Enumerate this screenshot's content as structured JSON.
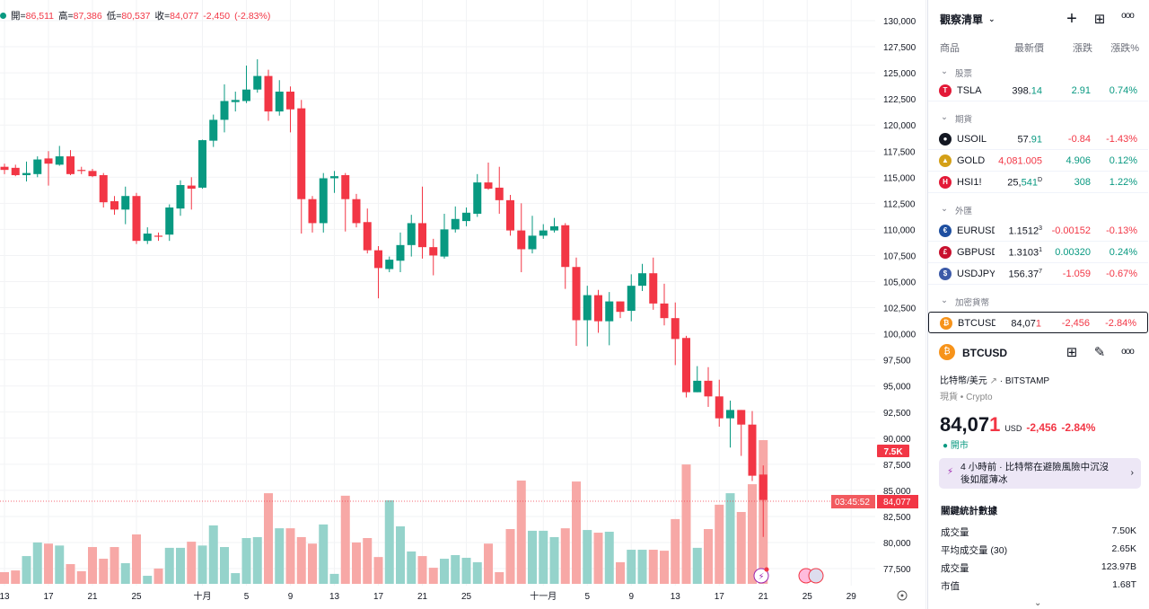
{
  "legend": {
    "open_label": "開=",
    "open": "86,511",
    "high_label": "高=",
    "high": "87,386",
    "low_label": "低=",
    "low": "80,537",
    "close_label": "收=",
    "close": "84,077",
    "change": "-2,450",
    "change_pct": "(-2.83%)"
  },
  "chart_data": {
    "type": "candlestick",
    "symbol": "BTCUSD",
    "ylim": [
      77500,
      130000
    ],
    "y_ticks": [
      "130,000",
      "127,500",
      "125,000",
      "122,500",
      "120,000",
      "117,500",
      "115,000",
      "112,500",
      "110,000",
      "107,500",
      "105,000",
      "102,500",
      "100,000",
      "97,500",
      "95,000",
      "92,500",
      "90,000",
      "87,500",
      "85,000",
      "82,500",
      "80,000",
      "77,500"
    ],
    "y_tick_values": [
      130000,
      127500,
      125000,
      122500,
      120000,
      117500,
      115000,
      112500,
      110000,
      107500,
      105000,
      102500,
      100000,
      97500,
      95000,
      92500,
      90000,
      87500,
      85000,
      82500,
      80000,
      77500
    ],
    "x_labels": [
      {
        "label": "13",
        "index": 0
      },
      {
        "label": "17",
        "index": 4
      },
      {
        "label": "21",
        "index": 8
      },
      {
        "label": "25",
        "index": 12
      },
      {
        "label": "十月",
        "index": 18
      },
      {
        "label": "5",
        "index": 22
      },
      {
        "label": "9",
        "index": 26
      },
      {
        "label": "13",
        "index": 30
      },
      {
        "label": "17",
        "index": 34
      },
      {
        "label": "21",
        "index": 38
      },
      {
        "label": "25",
        "index": 42
      },
      {
        "label": "十一月",
        "index": 49
      },
      {
        "label": "5",
        "index": 53
      },
      {
        "label": "9",
        "index": 57
      },
      {
        "label": "13",
        "index": 61
      },
      {
        "label": "17",
        "index": 65
      },
      {
        "label": "21",
        "index": 69
      },
      {
        "label": "25",
        "index": 73
      },
      {
        "label": "29",
        "index": 77
      }
    ],
    "ohlc": [
      [
        116000,
        116300,
        115300,
        115700
      ],
      [
        115900,
        116200,
        115100,
        115200
      ],
      [
        115200,
        116500,
        114600,
        115400
      ],
      [
        115300,
        117000,
        115000,
        116700
      ],
      [
        116800,
        117500,
        114200,
        116300
      ],
      [
        116200,
        118000,
        116100,
        117000
      ],
      [
        117000,
        117600,
        115200,
        115300
      ],
      [
        115700,
        116000,
        115300,
        115600
      ],
      [
        115600,
        115800,
        115000,
        115100
      ],
      [
        115200,
        115400,
        112100,
        112600
      ],
      [
        112700,
        113200,
        111400,
        111900
      ],
      [
        111900,
        114100,
        110500,
        113200
      ],
      [
        113200,
        113500,
        108600,
        108900
      ],
      [
        108900,
        110200,
        108600,
        109600
      ],
      [
        109400,
        109700,
        108900,
        109300
      ],
      [
        109500,
        112400,
        108900,
        112100
      ],
      [
        112000,
        114700,
        111300,
        114250
      ],
      [
        114200,
        115000,
        111900,
        113900
      ],
      [
        114000,
        118600,
        113900,
        118550
      ],
      [
        118500,
        121000,
        117900,
        120500
      ],
      [
        120500,
        123900,
        119300,
        122300
      ],
      [
        122200,
        123200,
        121300,
        122400
      ],
      [
        122300,
        125700,
        122100,
        123400
      ],
      [
        123400,
        126300,
        123100,
        124700
      ],
      [
        124700,
        125300,
        120400,
        121300
      ],
      [
        121300,
        124300,
        120900,
        123200
      ],
      [
        123200,
        123700,
        119300,
        121500
      ],
      [
        121600,
        122400,
        109600,
        112900
      ],
      [
        112900,
        113200,
        109700,
        110600
      ],
      [
        110600,
        115400,
        109700,
        114900
      ],
      [
        114900,
        115600,
        113500,
        115100
      ],
      [
        115200,
        115400,
        109800,
        112900
      ],
      [
        112900,
        113400,
        110200,
        110600
      ],
      [
        110700,
        112000,
        107700,
        108000
      ],
      [
        108000,
        108400,
        103400,
        106300
      ],
      [
        106200,
        107400,
        105900,
        107100
      ],
      [
        107000,
        109700,
        105900,
        108500
      ],
      [
        108500,
        111400,
        107400,
        110600
      ],
      [
        110600,
        114100,
        107200,
        108300
      ],
      [
        108300,
        109100,
        105600,
        107500
      ],
      [
        107400,
        111500,
        107200,
        110000
      ],
      [
        110000,
        112200,
        109700,
        111000
      ],
      [
        110800,
        112100,
        110300,
        111600
      ],
      [
        111500,
        115300,
        111200,
        114500
      ],
      [
        114500,
        116400,
        113800,
        113900
      ],
      [
        114000,
        116000,
        111500,
        112800
      ],
      [
        112800,
        113300,
        109400,
        109900
      ],
      [
        109900,
        112500,
        105900,
        108100
      ],
      [
        108100,
        111300,
        107700,
        109400
      ],
      [
        109400,
        110500,
        109100,
        109900
      ],
      [
        109900,
        111100,
        109700,
        110300
      ],
      [
        110400,
        110600,
        104300,
        106400
      ],
      [
        106400,
        107300,
        98850,
        101300
      ],
      [
        101300,
        104600,
        98800,
        103700
      ],
      [
        103700,
        104200,
        100100,
        101200
      ],
      [
        101200,
        104000,
        98900,
        103100
      ],
      [
        103100,
        103100,
        101500,
        102100
      ],
      [
        102200,
        105700,
        101200,
        104600
      ],
      [
        104600,
        106700,
        104100,
        105800
      ],
      [
        105800,
        107300,
        102300,
        102900
      ],
      [
        102900,
        104800,
        100800,
        101500
      ],
      [
        101500,
        103000,
        97000,
        99500
      ],
      [
        99600,
        99800,
        93900,
        94400
      ],
      [
        94400,
        96900,
        94400,
        95500
      ],
      [
        95500,
        96800,
        93000,
        94000
      ],
      [
        94000,
        95600,
        91100,
        91900
      ],
      [
        91900,
        93600,
        89100,
        92700
      ],
      [
        92700,
        92700,
        88300,
        91300
      ],
      [
        91300,
        92600,
        85900,
        86400
      ],
      [
        86511,
        87386,
        80537,
        84077
      ]
    ],
    "volume_k": [
      0.61,
      0.7,
      1.45,
      2.16,
      2.1,
      2.0,
      1.03,
      0.66,
      1.92,
      1.31,
      1.92,
      1.08,
      2.58,
      0.42,
      0.8,
      1.88,
      1.88,
      2.2,
      2.0,
      3.05,
      1.92,
      0.56,
      2.39,
      2.44,
      4.73,
      2.9,
      2.9,
      2.44,
      2.1,
      3.1,
      0.52,
      4.6,
      2.16,
      2.39,
      1.4,
      4.36,
      3.0,
      1.69,
      1.45,
      0.84,
      1.31,
      1.5,
      1.36,
      1.13,
      2.1,
      0.61,
      2.86,
      5.39,
      2.77,
      2.77,
      2.44,
      2.9,
      5.34,
      2.81,
      2.67,
      2.72,
      1.13,
      1.78,
      1.78,
      1.78,
      1.73,
      3.38,
      6.23,
      1.88,
      2.86,
      4.13,
      4.73,
      3.75,
      5.2,
      7.5
    ],
    "last_price_label": "84,077",
    "countdown": "03:45:52",
    "volume_label": "7.5K",
    "last_price": 84077
  },
  "colors": {
    "up": "#089981",
    "down": "#f23645",
    "vol_up": "#95d3cb",
    "vol_down": "#f7a8a6"
  },
  "watchlist": {
    "title": "觀察清單",
    "cols": {
      "symbol": "商品",
      "last": "最新價",
      "chg": "漲跌",
      "chg_pct": "漲跌%"
    },
    "sections": {
      "stocks": "股票",
      "futures": "期貨",
      "forex": "外匯",
      "crypto": "加密貨幣"
    },
    "rows": [
      {
        "sym": "TSLA",
        "icon": "T",
        "icon_color": "#e31937",
        "pa": "398.",
        "pb": "14",
        "pb_c": "g",
        "sup": "",
        "chg": "2.91",
        "pct": "0.74%",
        "dir": "g"
      },
      {
        "sym": "USOIL",
        "icon": "●",
        "icon_color": "#131722",
        "pa": "57.",
        "pb": "91",
        "pb_c": "g",
        "sup": "",
        "chg": "-0.84",
        "pct": "-1.43%",
        "dir": "r"
      },
      {
        "sym": "GOLD",
        "icon": "▲",
        "icon_color": "#d4a017",
        "pa": "4,081.005",
        "pb": "",
        "pa_c": "r",
        "pb_c": "r",
        "sup": "",
        "chg": "4.906",
        "pct": "0.12%",
        "dir": "g"
      },
      {
        "sym": "HSI1!",
        "icon": "H",
        "icon_color": "#e31937",
        "pa": "25,",
        "pb": "541",
        "pb_c": "g",
        "sup": "D",
        "chg": "308",
        "pct": "1.22%",
        "dir": "g"
      },
      {
        "sym": "EURUSD",
        "icon": "€",
        "icon_color": "#1e4fa0",
        "pa": "1.1512",
        "pb": "",
        "pb_c": "",
        "sup": "3",
        "chg": "-0.00152",
        "pct": "-0.13%",
        "dir": "r"
      },
      {
        "sym": "GBPUSD",
        "icon": "£",
        "icon_color": "#c8102e",
        "pa": "1.3103",
        "pb": "",
        "pb_c": "",
        "sup": "1",
        "chg": "0.00320",
        "pct": "0.24%",
        "dir": "g"
      },
      {
        "sym": "USDJPY",
        "icon": "$",
        "icon_color": "#3c5aa8",
        "pa": "156.37",
        "pb": "",
        "pb_c": "",
        "sup": "7",
        "chg": "-1.059",
        "pct": "-0.67%",
        "dir": "r"
      },
      {
        "sym": "BTCUSD",
        "icon": "₿",
        "icon_color": "#f7931a",
        "pa": "84,07",
        "pb": "1",
        "pb_c": "r",
        "sup": "",
        "chg": "-2,456",
        "pct": "-2.84%",
        "dir": "r"
      }
    ]
  },
  "detail": {
    "symbol": "BTCUSD",
    "name": "比特幣/美元",
    "exchange": "BITSTAMP",
    "type": "現貨",
    "category": "Crypto",
    "price_a": "84,07",
    "price_b": "1",
    "currency": "USD",
    "change": "-2,456",
    "change_pct": "-2.84%",
    "status": "開市",
    "news": "4 小時前 · 比特幣在避險風險中沉沒後如履薄冰",
    "stats_title": "關鍵統計數據",
    "stats": [
      {
        "label": "成交量",
        "value": "7.50K"
      },
      {
        "label": "平均成交量 (30)",
        "value": "2.65K"
      },
      {
        "label": "成交量",
        "value": "123.97B"
      },
      {
        "label": "市值",
        "value": "1.68T"
      }
    ]
  }
}
